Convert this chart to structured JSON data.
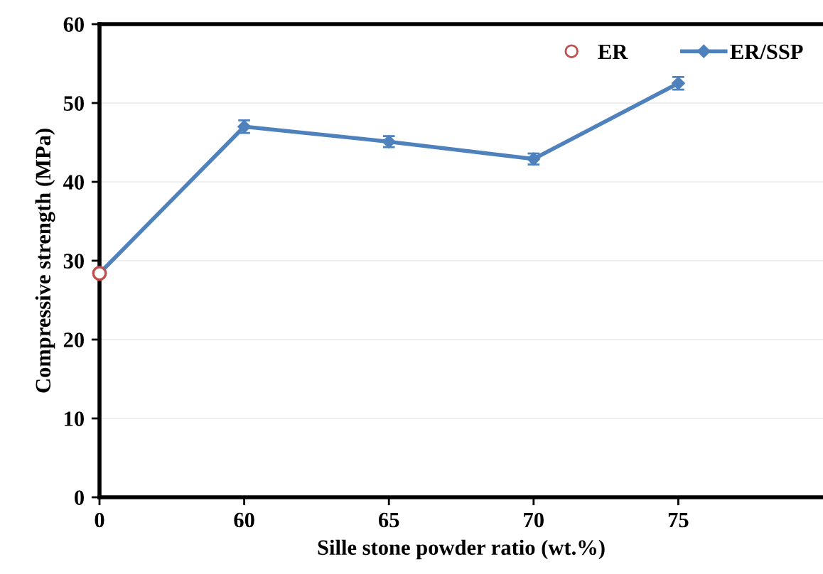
{
  "chart_data": {
    "type": "line",
    "xlabel": "Sille stone powder ratio (wt.%)",
    "ylabel": "Compressive strength (MPa)",
    "categories": [
      "0",
      "60",
      "65",
      "70",
      "75"
    ],
    "series": [
      {
        "name": "ER",
        "type": "scatter",
        "color": "#c0504d",
        "marker": "circle",
        "values": [
          28.4,
          null,
          null,
          null,
          null
        ]
      },
      {
        "name": "ER/SSP",
        "color": "#4f81bd",
        "marker": "diamond",
        "values": [
          28.4,
          47.0,
          45.1,
          42.9,
          52.5
        ],
        "errors": [
          null,
          0.8,
          0.7,
          0.7,
          0.8
        ]
      }
    ],
    "ylim": [
      0,
      60
    ],
    "yticks": [
      0,
      10,
      20,
      30,
      40,
      50,
      60
    ],
    "grid": "y",
    "legend": "top right"
  }
}
